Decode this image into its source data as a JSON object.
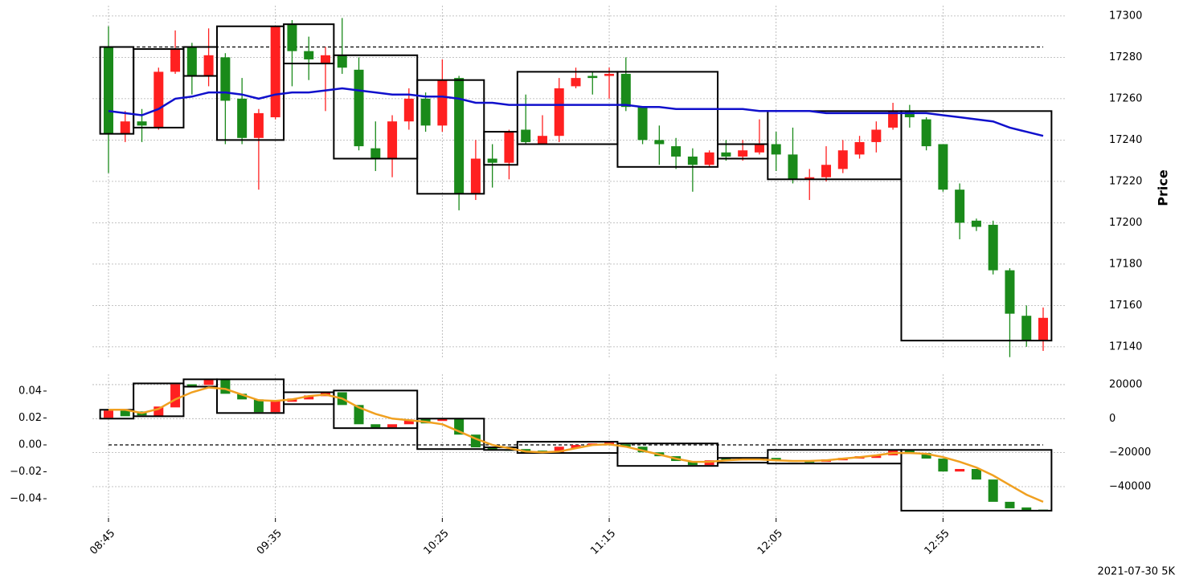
{
  "caption": "2021-07-30 5K",
  "chart_data": [
    {
      "type": "candlestick",
      "ylabel": "Price",
      "grid": true,
      "up_color": "#ff2020",
      "down_color": "#1a8a1a",
      "box_color": "#000000",
      "hline_color": "#000000",
      "categories": [
        "08:45",
        null,
        null,
        null,
        null,
        null,
        null,
        null,
        null,
        null,
        "09:35",
        null,
        null,
        null,
        null,
        null,
        null,
        null,
        null,
        null,
        "10:25",
        null,
        null,
        null,
        null,
        null,
        null,
        null,
        null,
        null,
        "11:15",
        null,
        null,
        null,
        null,
        null,
        null,
        null,
        null,
        null,
        "12:05",
        null,
        null,
        null,
        null,
        null,
        null,
        null,
        null,
        null,
        "12:55",
        null,
        null,
        null,
        null,
        null,
        null
      ],
      "open": [
        17285,
        17243,
        17249,
        17246,
        17273,
        17285,
        17271,
        17280,
        17260,
        17241,
        17251,
        17296,
        17283,
        17277,
        17281,
        17274,
        17236,
        17231,
        17249,
        17260,
        17247,
        17270,
        17214,
        17231,
        17229,
        17245,
        17238,
        17242,
        17266,
        17271,
        17271,
        17272,
        17256,
        17240,
        17237,
        17232,
        17228,
        17234,
        17232,
        17234,
        17238,
        17233,
        17221,
        17222,
        17226,
        17233,
        17239,
        17246,
        17254,
        17250,
        17238,
        17216,
        17201,
        17199,
        17177,
        17155,
        17143
      ],
      "high": [
        17295,
        17254,
        17255,
        17275,
        17293,
        17287,
        17294,
        17282,
        17270,
        17255,
        17295,
        17298,
        17290,
        17285,
        17299,
        17280,
        17249,
        17252,
        17265,
        17263,
        17279,
        17271,
        17240,
        17238,
        17245,
        17262,
        17252,
        17270,
        17275,
        17273,
        17275,
        17280,
        17256,
        17247,
        17241,
        17236,
        17235,
        17240,
        17240,
        17250,
        17244,
        17246,
        17226,
        17237,
        17240,
        17242,
        17249,
        17258,
        17257,
        17251,
        17238,
        17219,
        17202,
        17201,
        17178,
        17160,
        17159
      ],
      "low": [
        17224,
        17239,
        17239,
        17245,
        17272,
        17262,
        17266,
        17238,
        17238,
        17216,
        17250,
        17266,
        17269,
        17254,
        17272,
        17235,
        17225,
        17222,
        17245,
        17244,
        17244,
        17206,
        17211,
        17217,
        17221,
        17238,
        17238,
        17239,
        17265,
        17262,
        17260,
        17254,
        17238,
        17228,
        17226,
        17215,
        17227,
        17230,
        17230,
        17233,
        17225,
        17219,
        17211,
        17220,
        17224,
        17231,
        17234,
        17245,
        17246,
        17235,
        17215,
        17192,
        17196,
        17175,
        17135,
        17140,
        17138
      ],
      "close": [
        17243,
        17249,
        17247,
        17273,
        17284,
        17271,
        17281,
        17259,
        17241,
        17253,
        17295,
        17283,
        17279,
        17281,
        17275,
        17237,
        17231,
        17249,
        17260,
        17247,
        17269,
        17214,
        17231,
        17229,
        17244,
        17239,
        17242,
        17265,
        17270,
        17270,
        17272,
        17256,
        17240,
        17238,
        17232,
        17228,
        17234,
        17232,
        17235,
        17238,
        17233,
        17221,
        17222,
        17228,
        17235,
        17239,
        17245,
        17254,
        17251,
        17237,
        17216,
        17200,
        17198,
        17177,
        17156,
        17143,
        17154
      ],
      "line": {
        "color": "#1010cc",
        "values": [
          17254,
          17253,
          17252,
          17255,
          17260,
          17261,
          17263,
          17263,
          17262,
          17260,
          17262,
          17263,
          17263,
          17264,
          17265,
          17264,
          17263,
          17262,
          17262,
          17261,
          17261,
          17260,
          17258,
          17258,
          17257,
          17257,
          17257,
          17257,
          17257,
          17257,
          17257,
          17257,
          17256,
          17256,
          17255,
          17255,
          17255,
          17255,
          17255,
          17254,
          17254,
          17254,
          17254,
          17253,
          17253,
          17253,
          17253,
          17253,
          17253,
          17253,
          17252,
          17251,
          17250,
          17249,
          17246,
          17244,
          17242
        ]
      },
      "boxes": [
        {
          "start": 0,
          "end": 1,
          "low": 17243,
          "high": 17285
        },
        {
          "start": 2,
          "end": 4,
          "low": 17246,
          "high": 17284
        },
        {
          "start": 5,
          "end": 6,
          "low": 17271,
          "high": 17285
        },
        {
          "start": 7,
          "end": 10,
          "low": 17240,
          "high": 17295
        },
        {
          "start": 11,
          "end": 13,
          "low": 17277,
          "high": 17296
        },
        {
          "start": 14,
          "end": 18,
          "low": 17231,
          "high": 17281
        },
        {
          "start": 19,
          "end": 22,
          "low": 17214,
          "high": 17269
        },
        {
          "start": 23,
          "end": 24,
          "low": 17228,
          "high": 17244
        },
        {
          "start": 25,
          "end": 30,
          "low": 17238,
          "high": 17273
        },
        {
          "start": 31,
          "end": 36,
          "low": 17227,
          "high": 17273
        },
        {
          "start": 37,
          "end": 39,
          "low": 17231,
          "high": 17238
        },
        {
          "start": 40,
          "end": 47,
          "low": 17221,
          "high": 17254
        },
        {
          "start": 48,
          "end": 56,
          "low": 17143,
          "high": 17254
        }
      ],
      "hline": 17285,
      "ylim": [
        17134.5,
        17305
      ],
      "yticks": [
        17140,
        17160,
        17180,
        17200,
        17220,
        17240,
        17260,
        17280,
        17300
      ]
    },
    {
      "type": "candlestick",
      "grid": true,
      "up_color": "#ff2020",
      "down_color": "#1a8a1a",
      "box_color": "#000000",
      "hline_color": "#000000",
      "open": [
        470,
        4700,
        4200,
        1400,
        6600,
        20200,
        19800,
        23100,
        14600,
        11300,
        3800,
        9900,
        11300,
        13200,
        15500,
        8000,
        -3300,
        -5200,
        -3300,
        0,
        -1400,
        0,
        -9400,
        -16900,
        -18400,
        -17900,
        -18800,
        -19800,
        -17400,
        -15500,
        -15100,
        -15100,
        -16500,
        -19800,
        -22100,
        -24900,
        -27300,
        -23500,
        -24500,
        -24000,
        -23100,
        -24900,
        -25400,
        -25400,
        -24500,
        -23500,
        -23100,
        -21600,
        -18800,
        -20200,
        -23500,
        -31100,
        -29600,
        -35800,
        -48900,
        -52200,
        -53500
      ],
      "close": [
        4700,
        1400,
        1900,
        7100,
        20200,
        18300,
        23100,
        14600,
        11300,
        3800,
        10400,
        11800,
        13600,
        15500,
        8000,
        -3300,
        -5200,
        -3300,
        -500,
        -2800,
        0,
        -9400,
        -16900,
        -18400,
        -18800,
        -19800,
        -20200,
        -16500,
        -15500,
        -14600,
        -14100,
        -16500,
        -19800,
        -22100,
        -24900,
        -27300,
        -24500,
        -24500,
        -23500,
        -23100,
        -24900,
        -25400,
        -25600,
        -24000,
        -23100,
        -22100,
        -21600,
        -18800,
        -20200,
        -23500,
        -31100,
        -29600,
        -35800,
        -48900,
        -52700,
        -54100,
        -54100
      ],
      "line": {
        "color": "#f0a020",
        "values": [
          5200,
          5200,
          3300,
          5700,
          11300,
          15500,
          18300,
          17400,
          14100,
          10800,
          10400,
          11300,
          13200,
          14100,
          11800,
          6600,
          2800,
          0,
          -900,
          -1900,
          -3300,
          -7500,
          -11800,
          -15500,
          -17400,
          -19300,
          -19800,
          -19300,
          -17400,
          -15500,
          -15100,
          -16500,
          -18800,
          -21100,
          -23500,
          -25400,
          -25400,
          -24500,
          -24000,
          -24000,
          -24500,
          -24900,
          -24900,
          -24500,
          -23500,
          -22600,
          -21600,
          -20200,
          -20200,
          -20700,
          -22600,
          -25400,
          -28700,
          -33400,
          -39100,
          -44700,
          -48900
        ]
      },
      "boxes": [
        {
          "start": 0,
          "end": 1,
          "low": 0,
          "high": 5200
        },
        {
          "start": 2,
          "end": 4,
          "low": 1400,
          "high": 20700
        },
        {
          "start": 5,
          "end": 6,
          "low": 18800,
          "high": 23100
        },
        {
          "start": 7,
          "end": 10,
          "low": 3300,
          "high": 23100
        },
        {
          "start": 11,
          "end": 13,
          "low": 8500,
          "high": 15500
        },
        {
          "start": 14,
          "end": 18,
          "low": -5600,
          "high": 16500
        },
        {
          "start": 19,
          "end": 22,
          "low": -17900,
          "high": 0
        },
        {
          "start": 23,
          "end": 24,
          "low": -18400,
          "high": -16900
        },
        {
          "start": 25,
          "end": 30,
          "low": -20200,
          "high": -13600
        },
        {
          "start": 31,
          "end": 36,
          "low": -27800,
          "high": -14600
        },
        {
          "start": 37,
          "end": 39,
          "low": -25900,
          "high": -23100
        },
        {
          "start": 40,
          "end": 47,
          "low": -26400,
          "high": -18400
        },
        {
          "start": 48,
          "end": 56,
          "low": -54100,
          "high": -18400
        }
      ],
      "hline": 0,
      "ylim": [
        -0.0543,
        0.0525
      ],
      "yticks": [
        {
          "value": -0.04,
          "label": "−0.04"
        },
        {
          "value": -0.02,
          "label": "−0.02"
        },
        {
          "value": 0,
          "label": "0.00"
        },
        0.02,
        0.04
      ],
      "y2lim": [
        -58400,
        26100
      ],
      "y2ticks": [
        {
          "value": -40000,
          "label": "−40000"
        },
        {
          "value": -20000,
          "label": "−20000"
        },
        0,
        20000
      ]
    }
  ]
}
